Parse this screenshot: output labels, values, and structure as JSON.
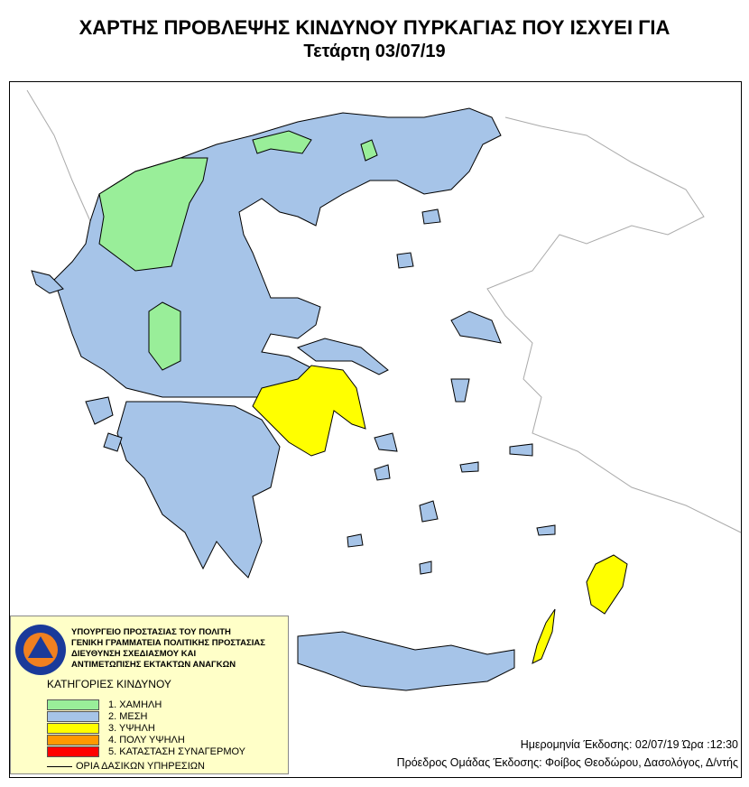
{
  "title": "ΧΑΡΤΗΣ ΠΡΟΒΛΕΨΗΣ ΚΙΝΔΥΝΟΥ ΠΥΡΚΑΓΙΑΣ ΠΟΥ ΙΣΧΥΕΙ ΓΙΑ",
  "subtitle": "Τετάρτη 03/07/19",
  "legend": {
    "org_lines": [
      "ΥΠΟΥΡΓΕΙΟ ΠΡΟΣΤΑΣΙΑΣ ΤΟΥ ΠΟΛΙΤΗ",
      "ΓΕΝΙΚΗ ΓΡΑΜΜΑΤΕΙΑ ΠΟΛΙΤΙΚΗΣ ΠΡΟΣΤΑΣΙΑΣ",
      "ΔΙΕΥΘΥΝΣΗ ΣΧΕΔΙΑΣΜΟΥ ΚΑΙ",
      "ΑΝΤΙΜΕΤΩΠΙΣΗΣ ΕΚΤΑΚΤΩΝ ΑΝΑΓΚΩΝ"
    ],
    "logo_text": "ΠΟΛΙΤΙΚΗ ΠΡΟΣΤΑΣΙΑ · ΕΛΛΑΔΑ",
    "categories_title": "ΚΑΤΗΓΟΡΙΕΣ ΚΙΝΔΥΝΟΥ",
    "categories": [
      {
        "label": "1. ΧΑΜΗΛΗ",
        "color": "#99ee99"
      },
      {
        "label": "2. ΜΕΣΗ",
        "color": "#a6c4e8"
      },
      {
        "label": "3. ΥΨΗΛΗ",
        "color": "#ffff00"
      },
      {
        "label": "4. ΠΟΛΥ ΥΨΗΛΗ",
        "color": "#ff9900"
      },
      {
        "label": "5. ΚΑΤΑΣΤΑΣΗ ΣΥΝΑΓΕΡΜΟΥ",
        "color": "#ff0000"
      }
    ],
    "border_label": "ΟΡΙΑ ΔΑΣΙΚΩΝ ΥΠΗΡΕΣΙΩΝ"
  },
  "footer": {
    "issue": "Ημερομηνία Έκδοσης: 02/07/19  Ώρα :12:30",
    "author": "Πρόεδρος Ομάδας Έκδοσης: Φοίβος Θεοδώρου,  Δασολόγος, Δ/ντής"
  }
}
